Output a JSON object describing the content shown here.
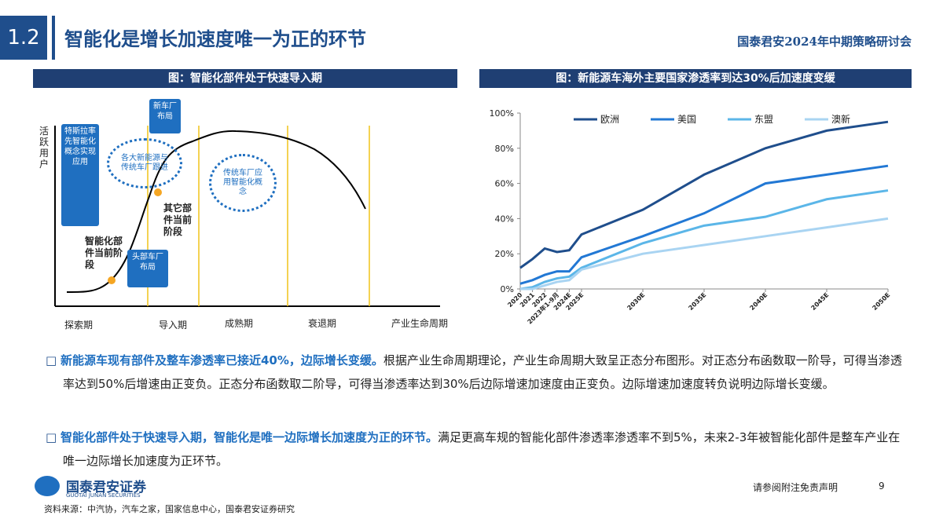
{
  "header": {
    "section": "1.2",
    "title": "智能化是增长加速度唯一为正的环节",
    "event": "国泰君安2024年中期策略研讨会"
  },
  "left_panel": {
    "title": "图：智能化部件处于快速导入期",
    "y_label": "活跃用户",
    "callouts": [
      "特斯拉率先智能化概念实现应用",
      "新车厂布局",
      "各大新能源与传统车厂跟进",
      "传统车厂应用智能化概念",
      "头部车厂布局"
    ],
    "stage_labels": [
      "智能化部件当前阶段",
      "其它部件当前阶段"
    ],
    "phases": [
      "探索期",
      "导入期",
      "成熟期",
      "衰退期"
    ],
    "x_label": "产业生命周期"
  },
  "chart_data": {
    "type": "line",
    "title": "图：新能源车海外主要国家渗透率到达30%后加速度变缓",
    "x": [
      2020,
      2021,
      2022,
      2023,
      2024,
      2025,
      2030,
      2035,
      2040,
      2045,
      2050
    ],
    "xlim": [
      2020,
      2050
    ],
    "xticks": [
      {
        "value": 2020,
        "label": "2020"
      },
      {
        "value": 2021,
        "label": "2021"
      },
      {
        "value": 2022,
        "label": "2022"
      },
      {
        "value": 2023,
        "label": "2023年1-9月"
      },
      {
        "value": 2024,
        "label": "2024E"
      },
      {
        "value": 2025,
        "label": "2025E"
      },
      {
        "value": 2030,
        "label": "2030E"
      },
      {
        "value": 2035,
        "label": "2035E"
      },
      {
        "value": 2040,
        "label": "2040E"
      },
      {
        "value": 2045,
        "label": "2045E"
      },
      {
        "value": 2050,
        "label": "2050E"
      }
    ],
    "ylim": [
      0,
      100
    ],
    "yticks": [
      {
        "value": 0,
        "label": "0%"
      },
      {
        "value": 20,
        "label": "20%"
      },
      {
        "value": 40,
        "label": "40%"
      },
      {
        "value": 60,
        "label": "60%"
      },
      {
        "value": 80,
        "label": "80%"
      },
      {
        "value": 100,
        "label": "100%"
      }
    ],
    "grid": false,
    "legend": "top",
    "series": [
      {
        "name": "欧洲",
        "color": "#1f4e8c",
        "values": [
          12,
          17,
          23,
          21,
          22,
          31,
          45,
          65,
          80,
          90,
          95
        ]
      },
      {
        "name": "美国",
        "color": "#2278d4",
        "values": [
          3,
          5,
          8,
          10,
          10,
          18,
          30,
          43,
          60,
          65,
          70
        ]
      },
      {
        "name": "东盟",
        "color": "#5bb6e8",
        "values": [
          0,
          1,
          4,
          6,
          7,
          12,
          26,
          36,
          41,
          51,
          56
        ]
      },
      {
        "name": "澳新",
        "color": "#a9d4f2",
        "values": [
          0,
          0,
          2,
          4,
          5,
          11,
          20,
          25,
          30,
          35,
          40
        ]
      }
    ]
  },
  "bullets": [
    {
      "bold": "新能源车现有部件及整车渗透率已接近40%，边际增长变缓。",
      "text": "根据产业生命周期理论，产业生命周期大致呈正态分布图形。对正态分布函数取一阶导，可得当渗透率达到50%后增速由正变负。正态分布函数取二阶导，可得当渗透率达到30%后边际增速加速度由正变负。边际增速加速度转负说明边际增长变缓。"
    },
    {
      "bold": "智能化部件处于快速导入期，智能化是唯一边际增长加速度为正的环节。",
      "text": "满足更高车规的智能化部件渗透率渗透率不到5%，未来2-3年被智能化部件是整车产业在唯一边际增长加速度为正环节。"
    }
  ],
  "footer": {
    "logo": "国泰君安证券",
    "logo_en": "GUOTAI JUNAN SECURITIES",
    "disclaimer": "请参阅附注免责声明",
    "page": "9",
    "source": "资料来源：中汽协，汽车之家，国家信息中心，国泰君安证券研究"
  }
}
